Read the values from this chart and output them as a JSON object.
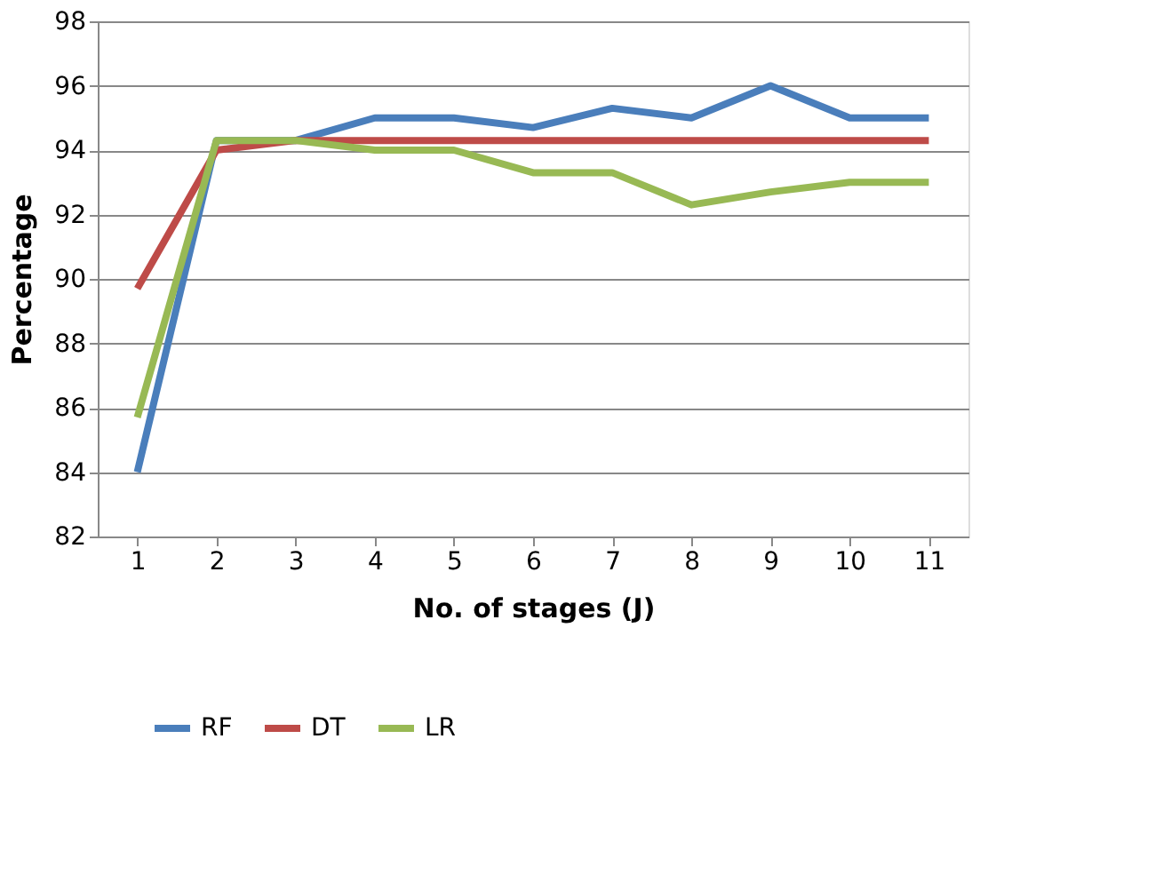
{
  "chart_data": {
    "type": "line",
    "xlabel": "No. of stages (J)",
    "ylabel": "Percentage",
    "categories": [
      "1",
      "2",
      "3",
      "4",
      "5",
      "6",
      "7",
      "8",
      "9",
      "10",
      "11"
    ],
    "series": [
      {
        "name": "RF",
        "color": "#4a7ebb",
        "values": [
          84,
          94.3,
          94.3,
          95,
          95,
          94.7,
          95.3,
          95,
          96,
          95,
          95
        ]
      },
      {
        "name": "DT",
        "color": "#be4b48",
        "values": [
          89.7,
          94,
          94.3,
          94.3,
          94.3,
          94.3,
          94.3,
          94.3,
          94.3,
          94.3,
          94.3
        ]
      },
      {
        "name": "LR",
        "color": "#98b954",
        "values": [
          85.7,
          94.3,
          94.3,
          94,
          94,
          93.3,
          93.3,
          92.3,
          92.7,
          93,
          93
        ]
      }
    ],
    "ylim": [
      82,
      98
    ],
    "yticks": [
      82,
      84,
      86,
      88,
      90,
      92,
      94,
      96,
      98
    ],
    "grid": "y",
    "legend": "bottom",
    "marker": "none",
    "line_style": "solid"
  }
}
